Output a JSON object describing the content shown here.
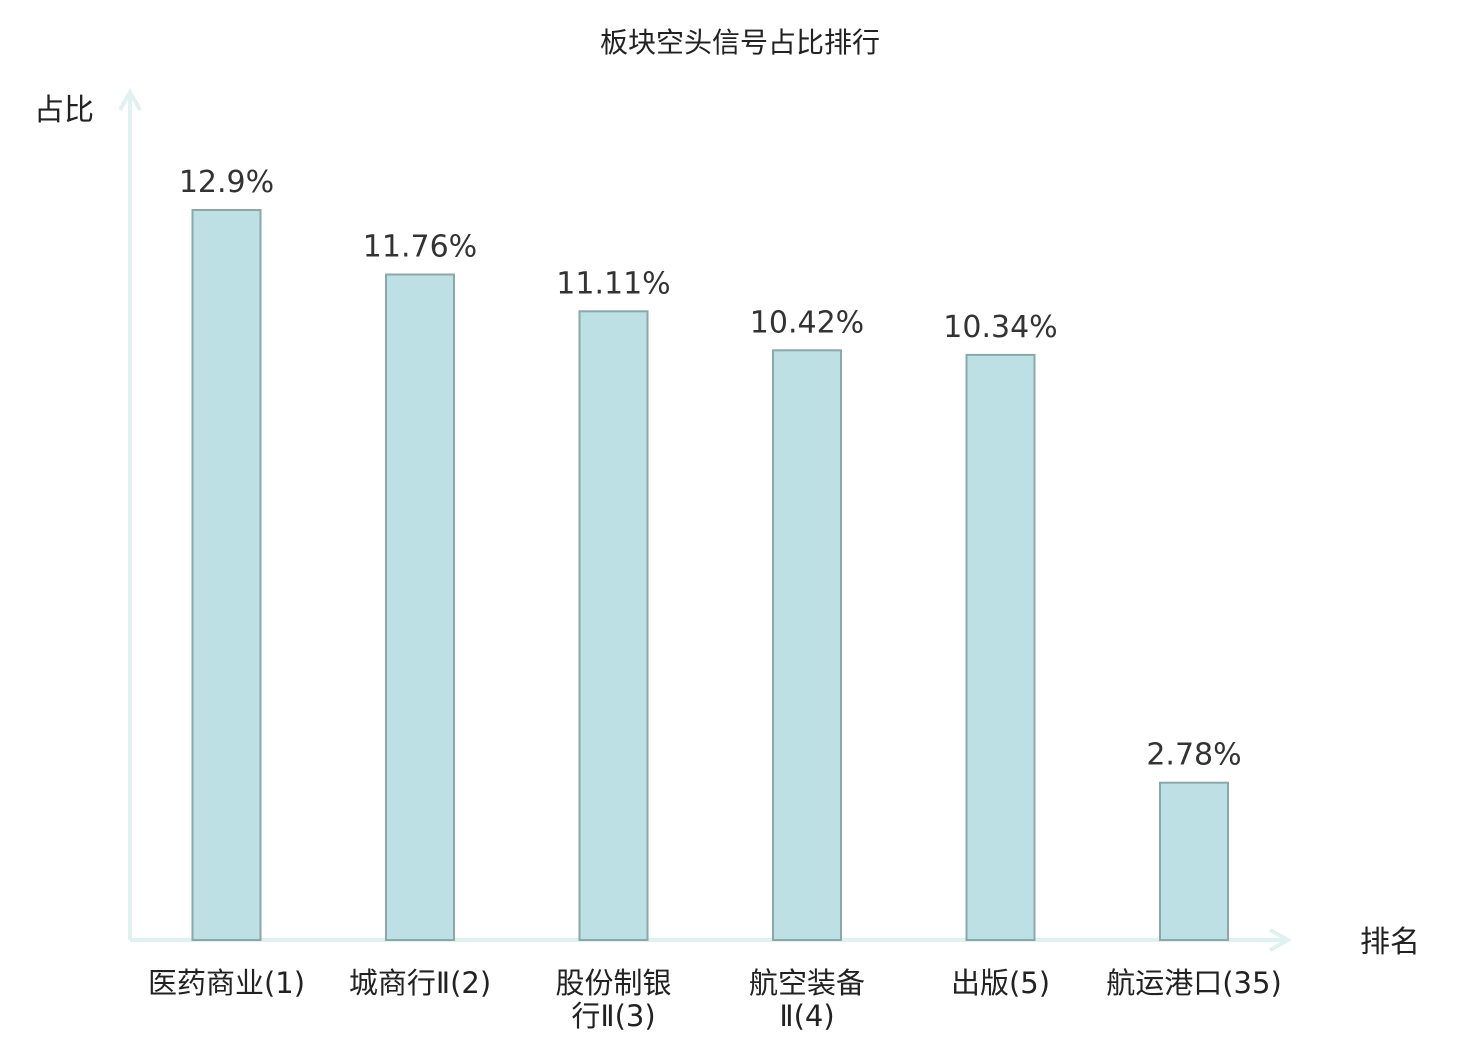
{
  "chart_data": {
    "type": "bar",
    "title": "板块空头信号占比排行",
    "ylabel": "占比",
    "xlabel": "排名",
    "categories": [
      [
        "医药商业(1)"
      ],
      [
        "城商行Ⅱ(2)"
      ],
      [
        "股份制银",
        "行Ⅱ(3)"
      ],
      [
        "航空装备",
        "Ⅱ(4)"
      ],
      [
        "出版(5)"
      ],
      [
        "航运港口(35)"
      ]
    ],
    "values": [
      12.9,
      11.76,
      11.11,
      10.42,
      10.34,
      2.78
    ],
    "value_labels": [
      "12.9%",
      "11.76%",
      "11.11%",
      "10.42%",
      "10.34%",
      "2.78%"
    ],
    "highlight_index": 5,
    "ylim": [
      0,
      15
    ],
    "grid": false,
    "legend": "none",
    "colors": {
      "bar_fill": "#bce0e3",
      "bar_stroke": "#8aa7a9",
      "axis": "#e0f2ef",
      "text": "#222222",
      "highlight_text": "#e02020"
    }
  }
}
